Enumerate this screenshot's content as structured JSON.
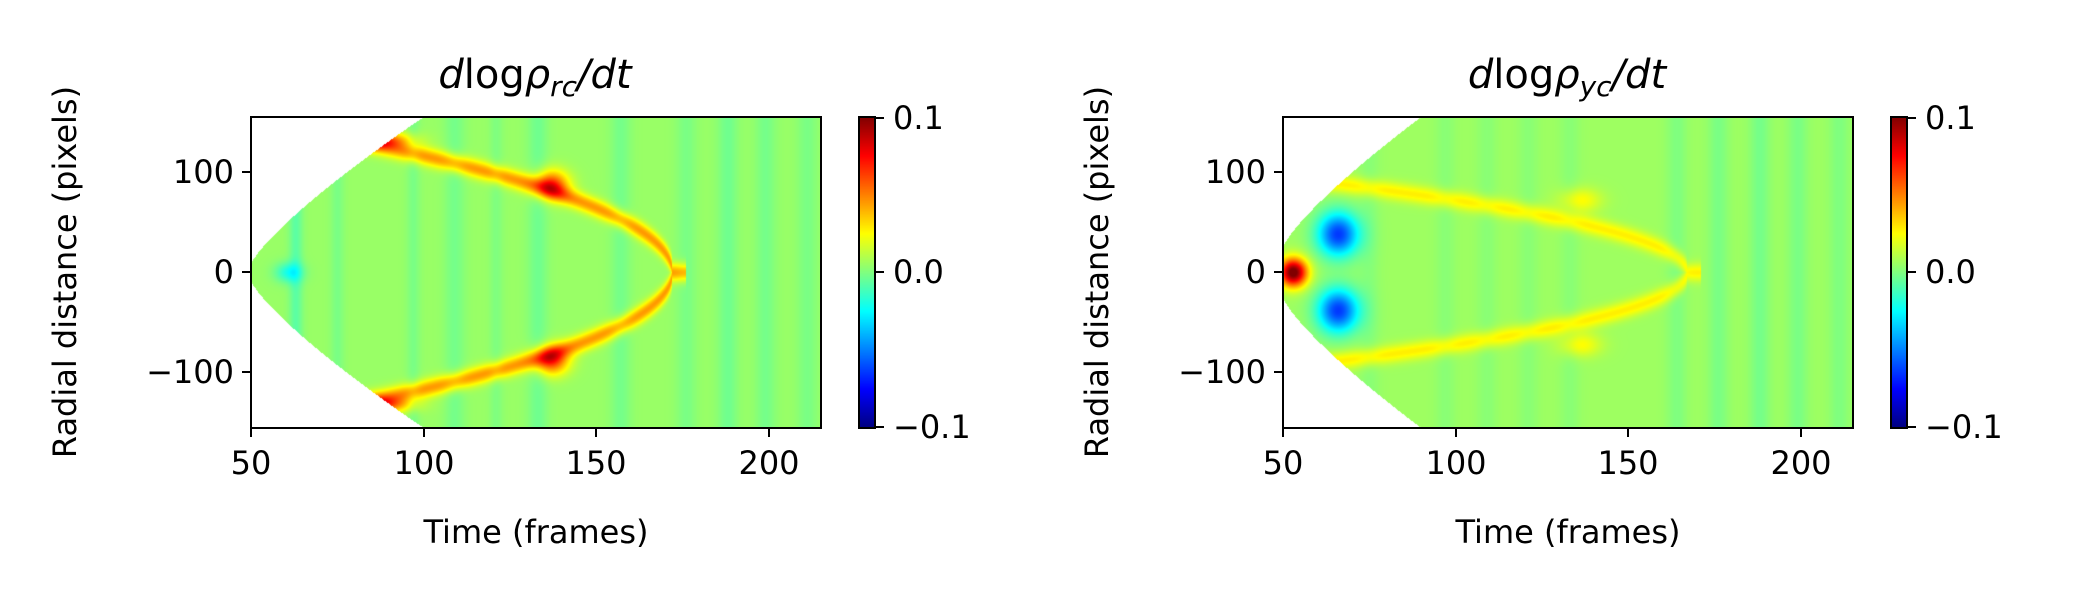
{
  "chart_data": [
    {
      "type": "heatmap",
      "title": {
        "prefix": "d",
        "log": "log",
        "rho": "ρ",
        "sub": "rc",
        "suffix": "/dt"
      },
      "xlabel": "Time (frames)",
      "ylabel": "Radial distance (pixels)",
      "xlim": [
        50,
        215
      ],
      "ylim": [
        -155,
        155
      ],
      "xticks": [
        50,
        100,
        150,
        200
      ],
      "xtick_labels": [
        "50",
        "100",
        "150",
        "200"
      ],
      "yticks": [
        100,
        0,
        -100
      ],
      "ytick_labels": [
        "100",
        "0",
        "−100"
      ],
      "colormap": "jet",
      "clim": [
        -0.1,
        0.1
      ],
      "colorbar_ticks": [
        0.1,
        0.0,
        -0.1
      ],
      "colorbar_tick_labels": [
        "0.1",
        "0.0",
        "−0.1"
      ],
      "background_value": 0.005,
      "front": {
        "start_frame": 50,
        "start_radius": 8,
        "full_frame": 100,
        "full_radius": 155
      },
      "features": [
        {
          "kind": "arc",
          "x_start": 82,
          "x_tip": 172,
          "radius_start": 130,
          "value": 0.04
        },
        {
          "kind": "blob",
          "x": 137,
          "y": 88,
          "rx": 5,
          "ry": 14,
          "value": 0.055
        },
        {
          "kind": "blob",
          "x": 137,
          "y": -88,
          "rx": 5,
          "ry": 14,
          "value": 0.055
        },
        {
          "kind": "blob",
          "x": 87,
          "y": 132,
          "rx": 9,
          "ry": 8,
          "value": 0.05
        },
        {
          "kind": "blob",
          "x": 87,
          "y": -132,
          "rx": 9,
          "ry": 8,
          "value": 0.05
        },
        {
          "kind": "blob",
          "x": 61,
          "y": 0,
          "rx": 4,
          "ry": 10,
          "value": -0.025
        }
      ],
      "stripes": [
        {
          "x": 63,
          "width": 2,
          "value": -0.012
        },
        {
          "x": 75,
          "width": 2,
          "value": -0.006
        },
        {
          "x": 97,
          "width": 2,
          "value": -0.006
        },
        {
          "x": 109,
          "width": 3,
          "value": -0.007
        },
        {
          "x": 121,
          "width": 2,
          "value": -0.005
        },
        {
          "x": 133,
          "width": 3,
          "value": -0.008
        },
        {
          "x": 157,
          "width": 3,
          "value": -0.007
        },
        {
          "x": 176,
          "width": 3,
          "value": -0.006
        },
        {
          "x": 188,
          "width": 3,
          "value": -0.008
        },
        {
          "x": 199,
          "width": 3,
          "value": -0.007
        },
        {
          "x": 211,
          "width": 3,
          "value": -0.006
        }
      ]
    },
    {
      "type": "heatmap",
      "title": {
        "prefix": "d",
        "log": "log",
        "rho": "ρ",
        "sub": "yc",
        "suffix": "/dt"
      },
      "xlabel": "Time (frames)",
      "ylabel": "Radial distance (pixels)",
      "xlim": [
        50,
        215
      ],
      "ylim": [
        -155,
        155
      ],
      "xticks": [
        50,
        100,
        150,
        200
      ],
      "xtick_labels": [
        "50",
        "100",
        "150",
        "200"
      ],
      "yticks": [
        100,
        0,
        -100
      ],
      "ytick_labels": [
        "100",
        "0",
        "−100"
      ],
      "colormap": "jet",
      "clim": [
        -0.1,
        0.1
      ],
      "colorbar_ticks": [
        0.1,
        0.0,
        -0.1
      ],
      "colorbar_tick_labels": [
        "0.1",
        "0.0",
        "−0.1"
      ],
      "background_value": 0.006,
      "front": {
        "start_frame": 50,
        "start_radius": 25,
        "full_frame": 90,
        "full_radius": 155
      },
      "features": [
        {
          "kind": "arc",
          "x_start": 62,
          "x_tip": 167,
          "radius_start": 90,
          "value": 0.022
        },
        {
          "kind": "blob",
          "x": 53,
          "y": 0,
          "rx": 4,
          "ry": 14,
          "value": 0.1
        },
        {
          "kind": "blob",
          "x": 66,
          "y": 38,
          "rx": 6,
          "ry": 22,
          "value": -0.07
        },
        {
          "kind": "blob",
          "x": 66,
          "y": -38,
          "rx": 6,
          "ry": 22,
          "value": -0.07
        },
        {
          "kind": "blob",
          "x": 136,
          "y": 72,
          "rx": 6,
          "ry": 12,
          "value": 0.02
        },
        {
          "kind": "blob",
          "x": 136,
          "y": -72,
          "rx": 6,
          "ry": 12,
          "value": 0.02
        }
      ],
      "stripes": [
        {
          "x": 75,
          "width": 3,
          "value": -0.004
        },
        {
          "x": 97,
          "width": 3,
          "value": -0.004
        },
        {
          "x": 109,
          "width": 3,
          "value": -0.004
        },
        {
          "x": 121,
          "width": 3,
          "value": -0.004
        },
        {
          "x": 133,
          "width": 3,
          "value": -0.004
        },
        {
          "x": 164,
          "width": 3,
          "value": -0.006
        },
        {
          "x": 176,
          "width": 3,
          "value": -0.007
        },
        {
          "x": 188,
          "width": 3,
          "value": -0.008
        },
        {
          "x": 199,
          "width": 3,
          "value": -0.007
        },
        {
          "x": 211,
          "width": 3,
          "value": -0.006
        }
      ]
    }
  ]
}
